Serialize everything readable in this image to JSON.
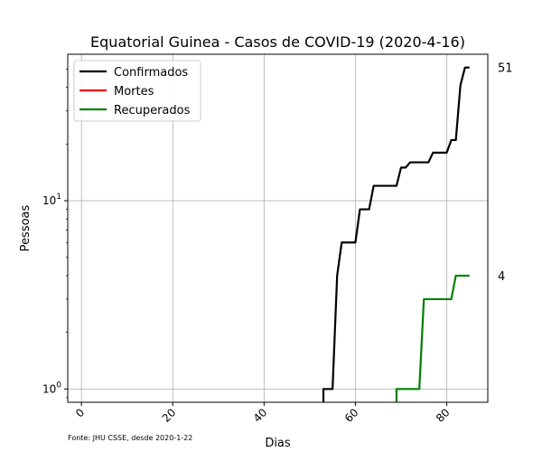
{
  "chart_data": {
    "type": "line",
    "title": "Equatorial Guinea - Casos de COVID-19 (2020-4-16)",
    "xlabel": "Dias",
    "ylabel": "Pessoas",
    "yscale": "log",
    "xlim": [
      -3,
      89
    ],
    "ylim": [
      0.85,
      60
    ],
    "xticks": [
      0,
      20,
      40,
      60,
      80
    ],
    "yticks": [
      {
        "value": 1,
        "base": "10",
        "exp": "0"
      },
      {
        "value": 10,
        "base": "10",
        "exp": "1"
      }
    ],
    "grid": true,
    "legend_position": "top-left",
    "source": "Fonte: JHU CSSE, desde 2020-1-22",
    "end_labels": [
      {
        "text": "51",
        "value": 51
      },
      {
        "text": "4",
        "value": 4
      }
    ],
    "series": [
      {
        "name": "Confirmados",
        "color": "#000000",
        "x": [
          53,
          54,
          55,
          56,
          57,
          58,
          59,
          60,
          61,
          62,
          63,
          64,
          65,
          66,
          67,
          68,
          69,
          70,
          71,
          72,
          73,
          74,
          75,
          76,
          77,
          78,
          79,
          80,
          81,
          82,
          83,
          84,
          85
        ],
        "y": [
          1,
          1,
          1,
          4,
          6,
          6,
          6,
          6,
          9,
          9,
          9,
          12,
          12,
          12,
          12,
          12,
          12,
          15,
          15,
          16,
          16,
          16,
          16,
          16,
          18,
          18,
          18,
          18,
          21,
          21,
          41,
          51,
          51
        ]
      },
      {
        "name": "Mortes",
        "color": "#ff0000",
        "x": [],
        "y": []
      },
      {
        "name": "Recuperados",
        "color": "#008000",
        "x": [
          69,
          70,
          71,
          72,
          73,
          74,
          75,
          76,
          77,
          78,
          79,
          80,
          81,
          82,
          83,
          84,
          85
        ],
        "y": [
          1,
          1,
          1,
          1,
          1,
          1,
          3,
          3,
          3,
          3,
          3,
          3,
          3,
          4,
          4,
          4,
          4
        ]
      }
    ]
  }
}
